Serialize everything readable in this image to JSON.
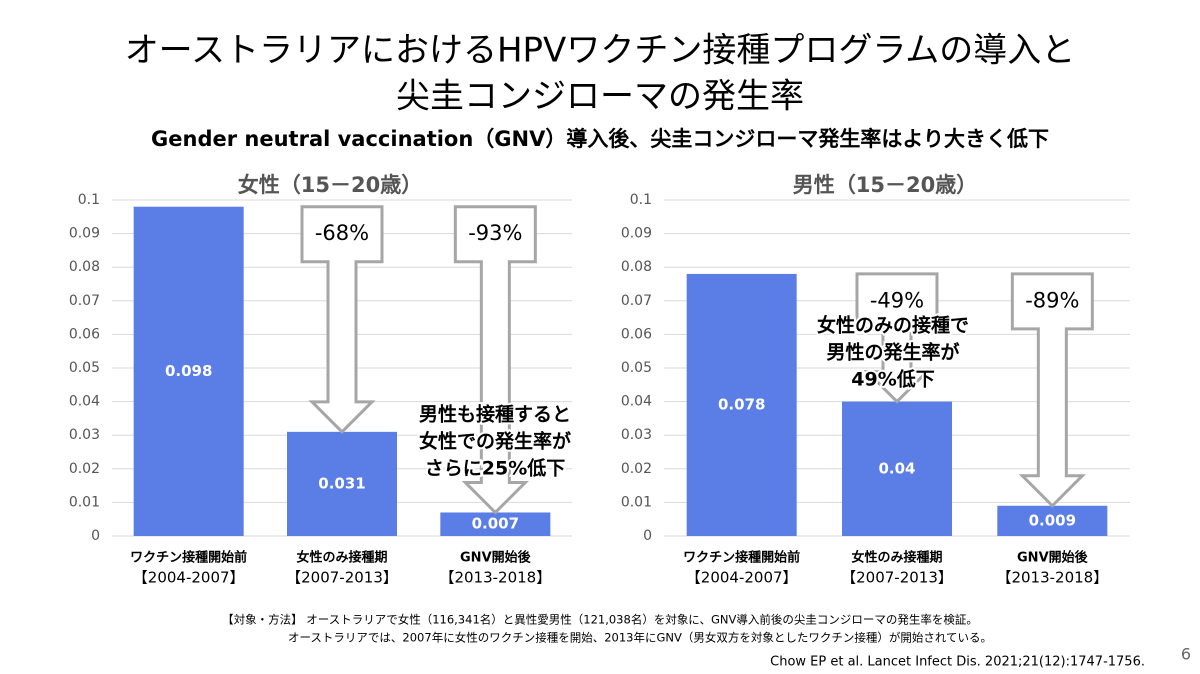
{
  "title": [
    "オーストラリアにおけるHPVワクチン接種プログラムの導入と",
    "尖圭コンジローマの発生率"
  ],
  "subtitle": "Gender neutral vaccination（GNV）導入後、尖圭コンジローマ発生率はより大きく低下",
  "notes": [
    "【対象・方法】 オーストラリアで女性（116,341名）と異性愛男性（121,038名）を対象に、GNV導入前後の尖圭コンジローマの発生率を検証。",
    "オーストラリアでは、2007年に女性のワクチン接種を開始、2013年にGNV（男女双方を対象としたワクチン接種）が開始されている。"
  ],
  "citation": "Chow EP et al. Lancet Infect Dis. 2021;21(12):1747-1756.",
  "page_number": "6",
  "chart_data": [
    {
      "type": "bar",
      "title": "女性（15－20歳）",
      "categories": [
        "ワクチン接種開始前",
        "女性のみ接種期",
        "GNV開始後"
      ],
      "category_periods": [
        "【2004-2007】",
        "【2007-2013】",
        "【2013-2018】"
      ],
      "values": [
        0.098,
        0.031,
        0.007
      ],
      "color": "#5a7de6",
      "ylim": [
        0,
        0.1
      ],
      "yticks": [
        0,
        0.01,
        0.02,
        0.03,
        0.04,
        0.05,
        0.06,
        0.07,
        0.08,
        0.09,
        0.1
      ],
      "grid": true,
      "annotations": [
        "-68%",
        "-93%"
      ],
      "callout": [
        "男性も接種すると",
        "女性での発生率が",
        "さらに25%低下"
      ]
    },
    {
      "type": "bar",
      "title": "男性（15－20歳）",
      "categories": [
        "ワクチン接種開始前",
        "女性のみ接種期",
        "GNV開始後"
      ],
      "category_periods": [
        "【2004-2007】",
        "【2007-2013】",
        "【2013-2018】"
      ],
      "values": [
        0.078,
        0.04,
        0.009
      ],
      "color": "#5a7de6",
      "ylim": [
        0,
        0.1
      ],
      "yticks": [
        0,
        0.01,
        0.02,
        0.03,
        0.04,
        0.05,
        0.06,
        0.07,
        0.08,
        0.09,
        0.1
      ],
      "grid": true,
      "annotations": [
        "-49%",
        "-89%"
      ],
      "callout": [
        "女性のみの接種で",
        "男性の発生率が",
        "49%低下"
      ]
    }
  ]
}
